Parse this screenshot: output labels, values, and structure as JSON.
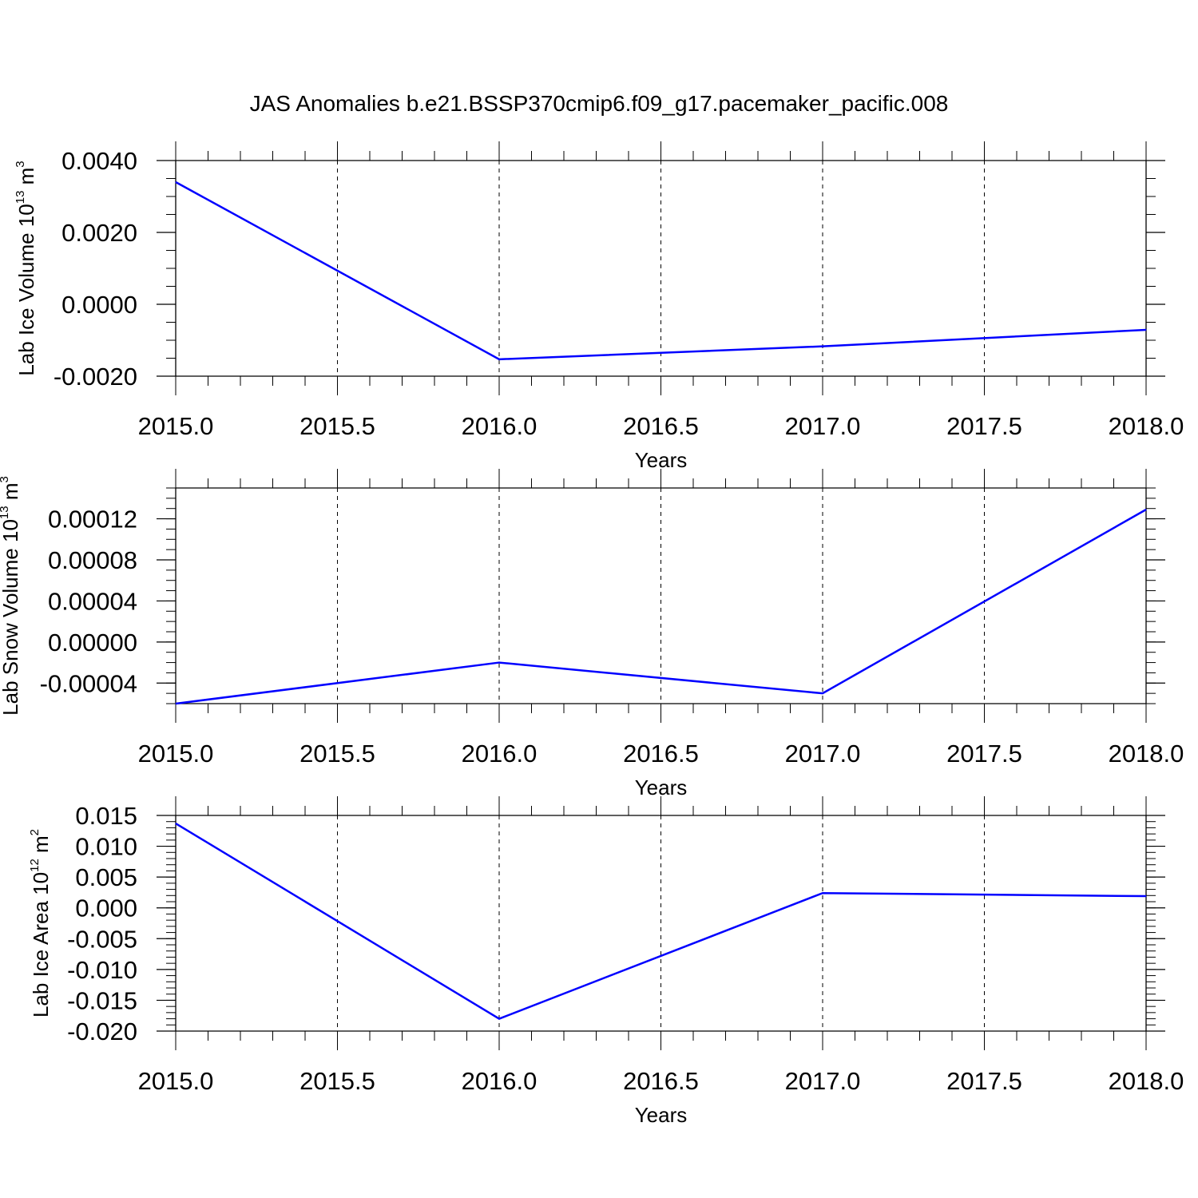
{
  "title": "JAS Anomalies b.e21.BSSP370cmip6.f09_g17.pacemaker_pacific.008",
  "colors": {
    "series": "#0000ff",
    "axis": "#000000",
    "grid": "#000000"
  },
  "chart_data": [
    {
      "type": "line",
      "ylabel": {
        "main": "Lab Ice Volume 10",
        "sup1": "13",
        "unit": " m",
        "sup2": "3"
      },
      "xlabel": "Years",
      "x": [
        2015,
        2016,
        2017,
        2018
      ],
      "series": [
        {
          "values": [
            0.0034,
            -0.00153,
            -0.00117,
            -0.00071
          ]
        }
      ],
      "xlim": [
        2015,
        2018
      ],
      "ylim": [
        -0.002,
        0.004
      ],
      "xticks": [
        2015.0,
        2015.5,
        2016.0,
        2016.5,
        2017.0,
        2017.5,
        2018.0
      ],
      "xtick_labels": [
        "2015.0",
        "2015.5",
        "2016.0",
        "2016.5",
        "2017.0",
        "2017.5",
        "2018.0"
      ],
      "yticks": [
        -0.002,
        0.0,
        0.002,
        0.004
      ],
      "ytick_labels": [
        "-0.0020",
        "0.0000",
        "0.0020",
        "0.0040"
      ],
      "y_minor_step": 0.0005,
      "grid": "vertical dashed"
    },
    {
      "type": "line",
      "ylabel": {
        "main": "Lab Snow Volume 10",
        "sup1": "13",
        "unit": " m",
        "sup2": "3"
      },
      "xlabel": "Years",
      "x": [
        2015,
        2016,
        2017,
        2018
      ],
      "series": [
        {
          "values": [
            -6e-05,
            -2e-05,
            -5e-05,
            0.000129
          ]
        }
      ],
      "xlim": [
        2015,
        2018
      ],
      "ylim": [
        -6e-05,
        0.00015
      ],
      "xticks": [
        2015.0,
        2015.5,
        2016.0,
        2016.5,
        2017.0,
        2017.5,
        2018.0
      ],
      "xtick_labels": [
        "2015.0",
        "2015.5",
        "2016.0",
        "2016.5",
        "2017.0",
        "2017.5",
        "2018.0"
      ],
      "yticks": [
        -4e-05,
        0.0,
        4e-05,
        8e-05,
        0.00012
      ],
      "ytick_labels": [
        "-0.00004",
        "0.00000",
        "0.00004",
        "0.00008",
        "0.00012"
      ],
      "y_minor_step": 1e-05,
      "grid": "vertical dashed"
    },
    {
      "type": "line",
      "ylabel": {
        "main": "Lab Ice Area 10",
        "sup1": "12",
        "unit": " m",
        "sup2": "2"
      },
      "xlabel": "Years",
      "x": [
        2015,
        2016,
        2017,
        2018
      ],
      "series": [
        {
          "values": [
            0.0137,
            -0.018,
            0.0024,
            0.0019
          ]
        }
      ],
      "xlim": [
        2015,
        2018
      ],
      "ylim": [
        -0.02,
        0.015
      ],
      "xticks": [
        2015.0,
        2015.5,
        2016.0,
        2016.5,
        2017.0,
        2017.5,
        2018.0
      ],
      "xtick_labels": [
        "2015.0",
        "2015.5",
        "2016.0",
        "2016.5",
        "2017.0",
        "2017.5",
        "2018.0"
      ],
      "yticks": [
        -0.02,
        -0.015,
        -0.01,
        -0.005,
        0.0,
        0.005,
        0.01,
        0.015
      ],
      "ytick_labels": [
        "-0.020",
        "-0.015",
        "-0.010",
        "-0.005",
        "0.000",
        "0.005",
        "0.010",
        "0.015"
      ],
      "y_minor_step": 0.001,
      "grid": "vertical dashed"
    }
  ]
}
